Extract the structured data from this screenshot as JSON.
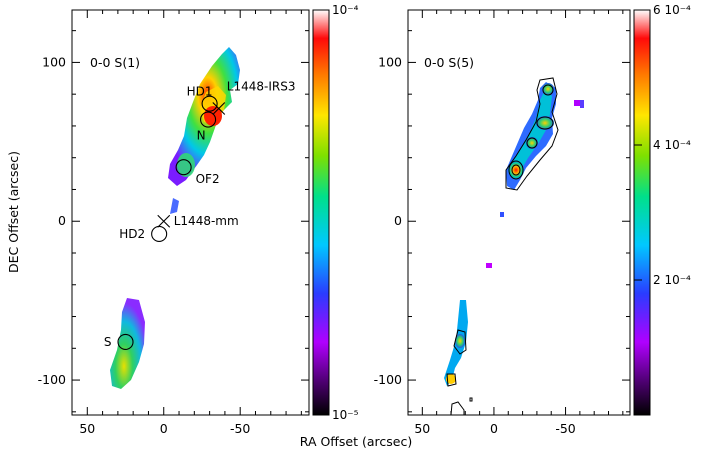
{
  "figure": {
    "xlabel": "RA Offset (arcsec)",
    "ylabel": "DEC Offset (arcsec)"
  },
  "chart_data": [
    {
      "type": "heatmap",
      "title": "0-0 S(1)",
      "xlabel": "RA Offset (arcsec)",
      "ylabel": "DEC Offset (arcsec)",
      "xlim": [
        60,
        -95
      ],
      "ylim": [
        -122,
        133
      ],
      "x_ticks": [
        50,
        0,
        -50
      ],
      "x_tick_labels": [
        "50",
        "0",
        "-50"
      ],
      "y_ticks": [
        100,
        0,
        -100
      ],
      "y_tick_labels": [
        "100",
        "0",
        "-100"
      ],
      "colorbar": {
        "scale": "log",
        "range": [
          1e-05,
          0.0001
        ],
        "top_label": "10⁻⁴",
        "bottom_label": "10⁻⁵"
      },
      "markers": [
        {
          "label": "L1448-mm",
          "shape": "cross",
          "x": 0,
          "y": 0
        },
        {
          "label": "L1448-IRS3",
          "shape": "cross",
          "x": -36,
          "y": 71
        },
        {
          "label": "HD1",
          "shape": "circle",
          "x": -30,
          "y": 74
        },
        {
          "label": "N",
          "shape": "circle",
          "x": -29,
          "y": 64
        },
        {
          "label": "OF2",
          "shape": "circle",
          "x": -13,
          "y": 34
        },
        {
          "label": "HD2",
          "shape": "circle",
          "x": 3,
          "y": -8
        },
        {
          "label": "S",
          "shape": "circle",
          "x": 25,
          "y": -76
        }
      ],
      "emission_regions": [
        {
          "name": "north lobe",
          "ra_range": [
            -50,
            -5
          ],
          "dec_range": [
            22,
            110
          ],
          "level": "high"
        },
        {
          "name": "south lobe",
          "ra_range": [
            16,
            40
          ],
          "dec_range": [
            -105,
            -50
          ],
          "level": "medium"
        }
      ]
    },
    {
      "type": "heatmap",
      "title": "0-0 S(5)",
      "xlabel": "RA Offset (arcsec)",
      "ylabel": "DEC Offset (arcsec)",
      "xlim": [
        60,
        -95
      ],
      "ylim": [
        -122,
        133
      ],
      "x_ticks": [
        50,
        0,
        -50
      ],
      "x_tick_labels": [
        "50",
        "0",
        "-50"
      ],
      "y_ticks": [
        100,
        0,
        -100
      ],
      "y_tick_labels": [
        "100",
        "0",
        "-100"
      ],
      "contours": true,
      "colorbar": {
        "scale": "linear",
        "range": [
          0,
          0.0006
        ],
        "tick_labels": [
          "6 10⁻⁴",
          "4 10⁻⁴",
          "2 10⁻⁴"
        ],
        "ticks": [
          0.0006,
          0.0004,
          0.0002
        ]
      },
      "emission_regions": [
        {
          "name": "north chain",
          "ra_range": [
            -50,
            -2
          ],
          "dec_range": [
            22,
            92
          ],
          "level": "high"
        },
        {
          "name": "south knots",
          "ra_range": [
            28,
            40
          ],
          "dec_range": [
            -103,
            -45
          ],
          "level": "medium"
        }
      ]
    }
  ]
}
